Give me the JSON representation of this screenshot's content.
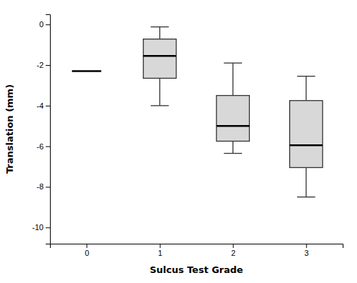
{
  "chart_data": {
    "type": "box",
    "xlabel": "Sulcus Test Grade",
    "ylabel": "Translation (mm)",
    "x": [
      0,
      1,
      2,
      3
    ],
    "median": [
      -2.3,
      -1.55,
      -5.0,
      -5.95
    ],
    "q1": [
      null,
      -2.65,
      -5.75,
      -7.05
    ],
    "q3": [
      null,
      -0.72,
      -3.5,
      -3.75
    ],
    "whisker_low": [
      null,
      -4.0,
      -6.35,
      -8.5
    ],
    "whisker_high": [
      null,
      -0.12,
      -1.9,
      -2.55
    ],
    "color": "#d8d8d8",
    "xlim": [
      -0.5,
      3.5
    ],
    "xticks": [
      0,
      1,
      2,
      3
    ],
    "ylim": [
      -10.8,
      0.5
    ],
    "yticks": [
      0,
      -2,
      -4,
      -6,
      -8,
      -10
    ]
  }
}
